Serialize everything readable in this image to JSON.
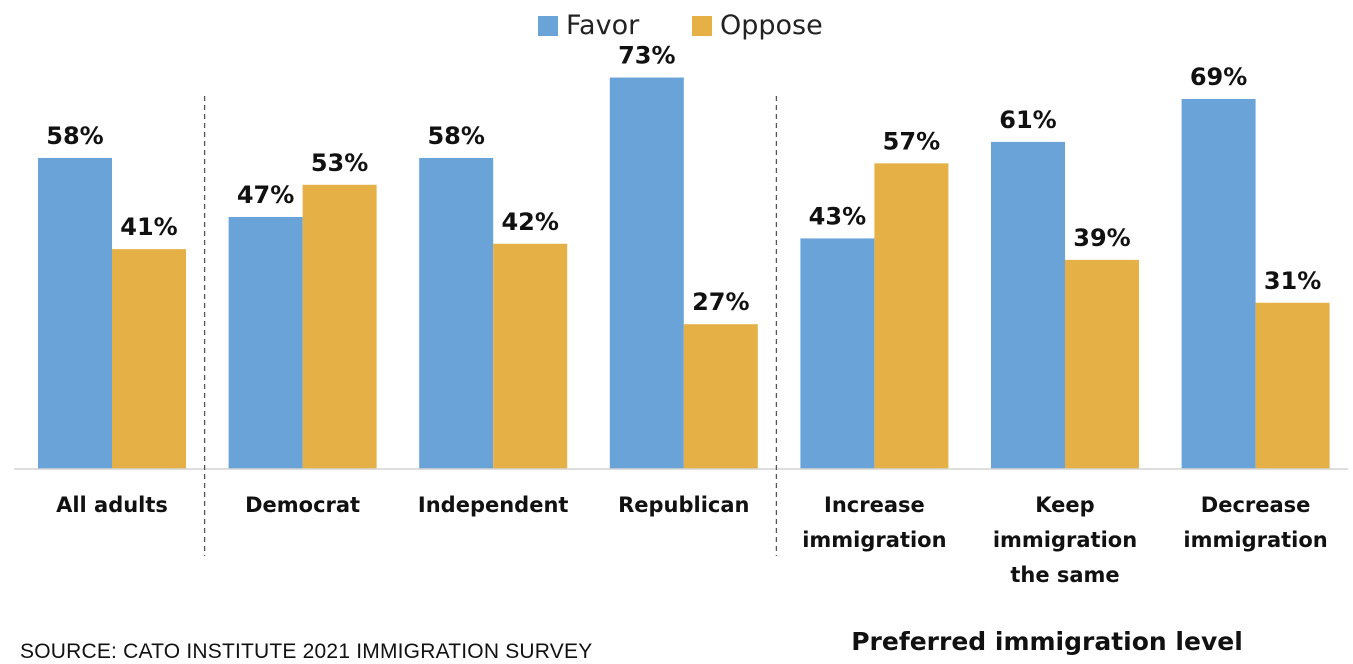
{
  "chart_data": {
    "type": "bar",
    "categories": [
      "All adults",
      "Democrat",
      "Independent",
      "Republican",
      "Increase immigration",
      "Keep immigration the same",
      "Decrease immigration"
    ],
    "category_lines": [
      [
        "All adults"
      ],
      [
        "Democrat"
      ],
      [
        "Independent"
      ],
      [
        "Republican"
      ],
      [
        "Increase",
        "immigration"
      ],
      [
        "Keep",
        "immigration",
        "the same"
      ],
      [
        "Decrease",
        "immigration"
      ]
    ],
    "series": [
      {
        "name": "Favor",
        "color": "#6aa3d8",
        "values": [
          58,
          47,
          58,
          73,
          43,
          61,
          69
        ]
      },
      {
        "name": "Oppose",
        "color": "#e5b147",
        "values": [
          41,
          53,
          42,
          27,
          57,
          39,
          31
        ]
      }
    ],
    "value_suffix": "%",
    "ylim": [
      0,
      80
    ],
    "grid": false,
    "legend_position": "top-center",
    "group_separators_after": [
      0,
      3
    ],
    "group_title": "Preferred immigration level"
  },
  "source": "SOURCE: CATO INSTITUTE 2021 IMMIGRATION SURVEY"
}
